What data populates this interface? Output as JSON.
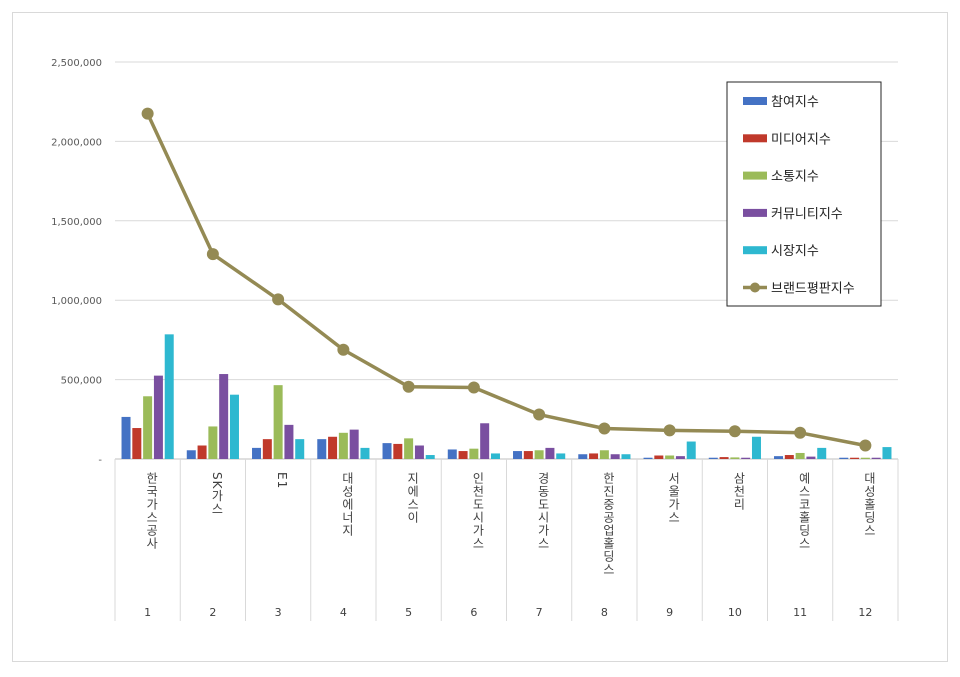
{
  "chart_data": {
    "type": "bar",
    "title": "",
    "xlabel": "",
    "ylabel": "",
    "ylim": [
      0,
      2500000
    ],
    "yticks": [
      0,
      500000,
      1000000,
      1500000,
      2000000,
      2500000
    ],
    "ytick_labels": [
      "-",
      "500,000",
      "1,000,000",
      "1,500,000",
      "2,000,000",
      "2,500,000"
    ],
    "grid": true,
    "legend_position": "top-right",
    "categories": [
      "한국가스공사",
      "SK가스",
      "E1",
      "대성에너지",
      "지에스이",
      "인천도시가스",
      "경동도시가스",
      "한진중공업홀딩스",
      "서울가스",
      "삼천리",
      "예스코홀딩스",
      "대성홀딩스"
    ],
    "ranks": [
      "1",
      "2",
      "3",
      "4",
      "5",
      "6",
      "7",
      "8",
      "9",
      "10",
      "11",
      "12"
    ],
    "series": [
      {
        "name": "참여지수",
        "kind": "bar",
        "color": "#4472c4",
        "values": [
          265000,
          55000,
          70000,
          125000,
          100000,
          60000,
          50000,
          30000,
          8000,
          8000,
          18000,
          8000
        ]
      },
      {
        "name": "미디어지수",
        "kind": "bar",
        "color": "#c0392b",
        "values": [
          195000,
          85000,
          125000,
          140000,
          95000,
          50000,
          50000,
          35000,
          22000,
          12000,
          25000,
          8000
        ]
      },
      {
        "name": "소통지수",
        "kind": "bar",
        "color": "#9bbb59",
        "values": [
          395000,
          205000,
          465000,
          165000,
          130000,
          65000,
          55000,
          55000,
          22000,
          10000,
          38000,
          8000
        ]
      },
      {
        "name": "커뮤니티지수",
        "kind": "bar",
        "color": "#7a4fa0",
        "values": [
          525000,
          535000,
          215000,
          185000,
          85000,
          225000,
          70000,
          30000,
          18000,
          8000,
          15000,
          8000
        ]
      },
      {
        "name": "시장지수",
        "kind": "bar",
        "color": "#2eb8d0",
        "values": [
          785000,
          405000,
          125000,
          70000,
          25000,
          35000,
          35000,
          30000,
          110000,
          140000,
          70000,
          75000
        ]
      },
      {
        "name": "브랜드평판지수",
        "kind": "line",
        "color": "#948a54",
        "values": [
          2175000,
          1290000,
          1005000,
          688000,
          455000,
          450000,
          280000,
          192000,
          180000,
          175000,
          165000,
          85000
        ]
      }
    ]
  }
}
